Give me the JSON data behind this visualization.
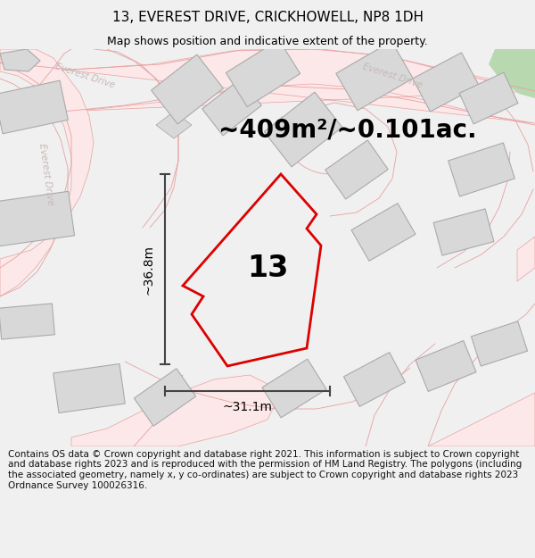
{
  "title": "13, EVEREST DRIVE, CRICKHOWELL, NP8 1DH",
  "subtitle": "Map shows position and indicative extent of the property.",
  "area_text": "~409m²/~0.101ac.",
  "width_label": "~31.1m",
  "height_label": "~36.8m",
  "plot_number": "13",
  "footer": "Contains OS data © Crown copyright and database right 2021. This information is subject to Crown copyright and database rights 2023 and is reproduced with the permission of HM Land Registry. The polygons (including the associated geometry, namely x, y co-ordinates) are subject to Crown copyright and database rights 2023 Ordnance Survey 100026316.",
  "bg_color": "#f0f0f0",
  "map_bg": "#ffffff",
  "road_line_color": "#e8a0a0",
  "building_color": "#d8d8d8",
  "building_edge": "#aaaaaa",
  "plot_color": "#dd0000",
  "dim_color": "#444444",
  "title_color": "#000000",
  "green_color": "#b8d8b0",
  "road_label_color": "#c8b8b8",
  "title_fontsize": 11,
  "subtitle_fontsize": 9,
  "area_fontsize": 20,
  "plot_num_fontsize": 24,
  "dim_fontsize": 10,
  "footer_fontsize": 7.5
}
